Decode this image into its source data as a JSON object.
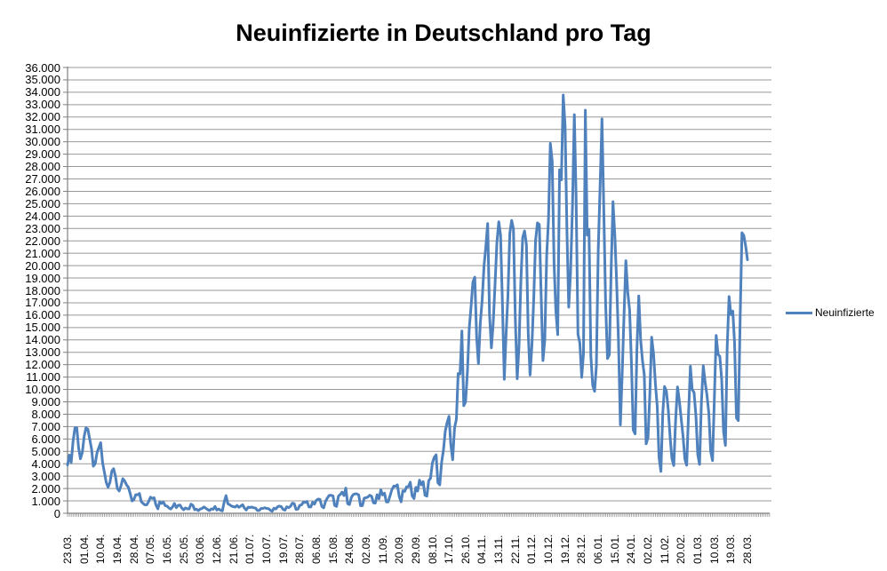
{
  "chart_data": {
    "type": "line",
    "title": "Neuinfizierte in Deutschland pro Tag",
    "xlabel": "",
    "ylabel": "",
    "ylim": [
      0,
      36000
    ],
    "y_tick_step": 1000,
    "y_tick_labels": [
      "0",
      "1.000",
      "2.000",
      "3.000",
      "4.000",
      "5.000",
      "6.000",
      "7.000",
      "8.000",
      "9.000",
      "10.000",
      "11.000",
      "12.000",
      "13.000",
      "14.000",
      "15.000",
      "16.000",
      "17.000",
      "18.000",
      "19.000",
      "20.000",
      "21.000",
      "22.000",
      "23.000",
      "24.000",
      "25.000",
      "26.000",
      "27.000",
      "28.000",
      "29.000",
      "30.000",
      "31.000",
      "32.000",
      "33.000",
      "34.000",
      "35.000",
      "36.000"
    ],
    "x_tick_labels": [
      "23.03.",
      "01.04.",
      "10.04.",
      "19.04.",
      "28.04.",
      "07.05.",
      "16.05.",
      "25.05.",
      "03.06.",
      "12.06.",
      "21.06.",
      "01.07.",
      "10.07.",
      "19.07.",
      "28.07.",
      "06.08.",
      "15.08.",
      "24.08.",
      "02.09.",
      "11.09.",
      "20.09.",
      "29.09.",
      "08.10.",
      "17.10.",
      "26.10.",
      "04.11.",
      "13.11.",
      "22.11.",
      "01.12.",
      "10.12.",
      "19.12.",
      "28.12.",
      "06.01.",
      "15.01.",
      "24.01.",
      "02.02.",
      "11.02.",
      "20.02.",
      "01.03.",
      "10.03.",
      "19.03.",
      "28.03."
    ],
    "x_label_every": 9,
    "grid": "horizontal",
    "legend_position": "right",
    "colors": {
      "line": "#4F81BD",
      "grid": "#989898",
      "axis": "#7f7f7f",
      "text": "#000000"
    },
    "series": [
      {
        "name": "Neuinfizierte",
        "color": "#4F81BD",
        "values": [
          3900,
          4700,
          4100,
          5800,
          6900,
          6900,
          5300,
          4400,
          4900,
          6200,
          6900,
          6800,
          6000,
          5200,
          3800,
          4000,
          4900,
          5300,
          5700,
          4100,
          3300,
          2500,
          2100,
          2500,
          3400,
          3600,
          3000,
          2000,
          1800,
          2200,
          2800,
          2600,
          2300,
          2100,
          1600,
          1000,
          1100,
          1500,
          1500,
          1600,
          945,
          793,
          679,
          685,
          947,
          1300,
          1200,
          1250,
          667,
          357,
          933,
          798,
          913,
          620,
          583,
          431,
          342,
          513,
          797,
          460,
          638,
          669,
          431,
          289,
          432,
          362,
          353,
          741,
          638,
          286,
          333,
          213,
          342,
          394,
          507,
          407,
          301,
          214,
          350,
          318,
          555,
          258,
          348,
          247,
          192,
          900,
          1430,
          770,
          687,
          580,
          537,
          503,
          630,
          480,
          580,
          687,
          422,
          262,
          498,
          466,
          503,
          446,
          422,
          239,
          219,
          390,
          397,
          442,
          395,
          378,
          248,
          159,
          412,
          351,
          534,
          583,
          529,
          305,
          249,
          522,
          454,
          569,
          815,
          781,
          305,
          340,
          633,
          684,
          902,
          870,
          955,
          509,
          509,
          879,
          741,
          1045,
          1147,
          1122,
          555,
          436,
          966,
          1226,
          1445,
          1449,
          1415,
          625,
          561,
          1390,
          1510,
          1707,
          1427,
          2034,
          782,
          711,
          1278,
          1507,
          1571,
          1571,
          1479,
          610,
          619,
          1218,
          1256,
          1311,
          1453,
          1378,
          847,
          814,
          1499,
          1176,
          1892,
          1484,
          1630,
          920,
          927,
          1407,
          1901,
          2194,
          2179,
          2297,
          1345,
          922,
          1821,
          1769,
          2143,
          2153,
          2507,
          1411,
          1192,
          2089,
          1798,
          2673,
          2305,
          2563,
          1449,
          1382,
          2639,
          2828,
          4058,
          4516,
          4721,
          2467,
          2297,
          4122,
          5132,
          6638,
          7334,
          7830,
          5587,
          4325,
          6868,
          7595,
          11287,
          11242,
          14714,
          8685,
          8985,
          11409,
          14964,
          16774,
          18681,
          19059,
          14177,
          12097,
          15352,
          17214,
          19990,
          21506,
          23399,
          16017,
          13363,
          15332,
          18487,
          21866,
          23542,
          22461,
          16947,
          10824,
          14419,
          17561,
          22609,
          23648,
          22964,
          15741,
          10864,
          13554,
          18633,
          22268,
          22806,
          21695,
          14611,
          11169,
          13604,
          17270,
          22046,
          23449,
          23318,
          17767,
          12332,
          14054,
          20815,
          23679,
          29875,
          28438,
          20200,
          16362,
          14432,
          27728,
          26923,
          33777,
          31300,
          22771,
          16643,
          19528,
          24740,
          32195,
          25533,
          14455,
          13755,
          10976,
          12892,
          32552,
          22459,
          22924,
          12690,
          10315,
          9847,
          11897,
          21237,
          26391,
          31849,
          24694,
          16946,
          12497,
          12802,
          19600,
          25164,
          22368,
          18678,
          13882,
          7141,
          11369,
          15974,
          20398,
          17862,
          16417,
          12257,
          6729,
          6412,
          13202,
          17553,
          14022,
          12321,
          11192,
          5608,
          6114,
          9705,
          14211,
          12908,
          10485,
          8616,
          4535,
          3379,
          8072,
          10237,
          9860,
          8354,
          6114,
          4426,
          3856,
          7556,
          10207,
          9113,
          7676,
          6235,
          4369,
          3883,
          8007,
          11869,
          9997,
          9762,
          7890,
          4732,
          3943,
          9019,
          11912,
          10580,
          9557,
          8103,
          5011,
          4252,
          9146,
          14356,
          12834,
          12674,
          10790,
          6604,
          5480,
          13435,
          17504,
          16033,
          16331,
          13733,
          7709,
          7485,
          15813,
          22657,
          22432,
          21573,
          20472
        ]
      }
    ]
  }
}
